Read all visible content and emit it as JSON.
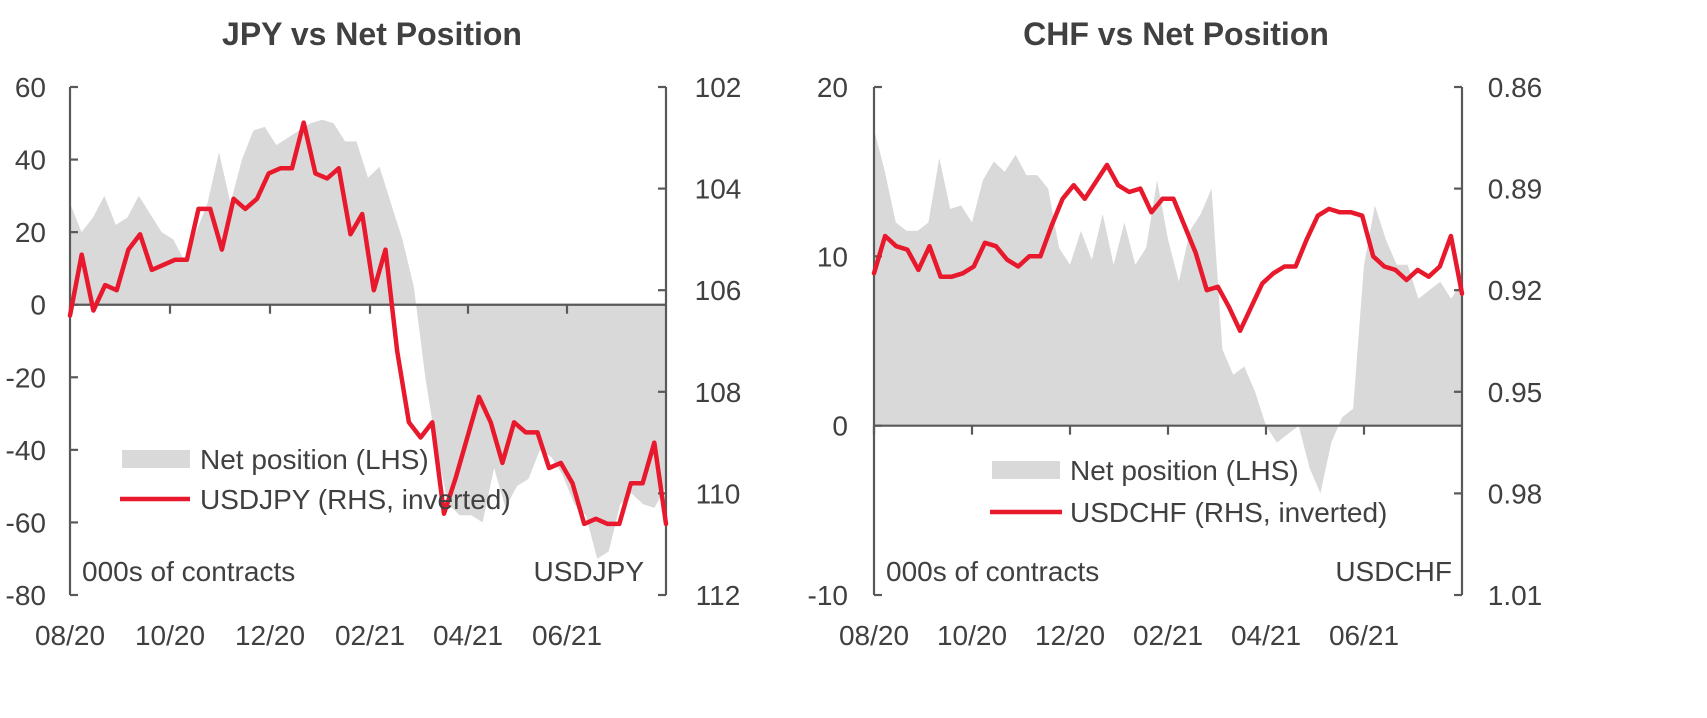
{
  "colors": {
    "area": "#d9d9d9",
    "line": "#e8192c",
    "axis": "#595959",
    "text": "#404040"
  },
  "chart_data": [
    {
      "type": "area",
      "title": "JPY vs Net Position",
      "left_axis_note": "000s of contracts",
      "right_axis_note": "USDJPY",
      "legend": [
        {
          "label": "Net position (LHS)",
          "kind": "area"
        },
        {
          "label": "USDJPY (RHS, inverted)",
          "kind": "line"
        }
      ],
      "x_tick_labels": [
        "08/20",
        "10/20",
        "12/20",
        "02/21",
        "04/21",
        "06/21"
      ],
      "y_left": {
        "min": -80,
        "max": 60,
        "ticks": [
          60,
          40,
          20,
          0,
          -20,
          -40,
          -60,
          -80
        ]
      },
      "y_right": {
        "min": 102,
        "max": 112,
        "inverted": true,
        "ticks": [
          102,
          104,
          106,
          108,
          110,
          112
        ]
      },
      "series": [
        {
          "name": "Net position (LHS)",
          "axis": "left",
          "values": [
            28,
            20,
            24,
            30,
            22,
            24,
            30,
            25,
            20,
            18,
            12,
            20,
            28,
            42,
            28,
            40,
            48,
            49,
            44,
            46,
            48,
            50,
            51,
            50,
            45,
            45,
            35,
            38,
            28,
            18,
            5,
            -20,
            -40,
            -55,
            -58,
            -58,
            -60,
            -45,
            -56,
            -50,
            -48,
            -40,
            -42,
            -47,
            -55,
            -58,
            -70,
            -68,
            -55,
            -52,
            -55,
            -56,
            -50
          ]
        },
        {
          "name": "USDJPY (RHS, inverted)",
          "axis": "right",
          "values": [
            106.5,
            105.3,
            106.4,
            105.9,
            106.0,
            105.2,
            104.9,
            105.6,
            105.5,
            105.4,
            105.4,
            104.4,
            104.4,
            105.2,
            104.2,
            104.4,
            104.2,
            103.7,
            103.6,
            103.6,
            102.7,
            103.7,
            103.8,
            103.6,
            104.9,
            104.5,
            106.0,
            105.2,
            107.2,
            108.6,
            108.9,
            108.6,
            110.4,
            109.7,
            108.9,
            108.1,
            108.6,
            109.4,
            108.6,
            108.8,
            108.8,
            109.5,
            109.4,
            109.8,
            110.6,
            110.5,
            110.6,
            110.6,
            109.8,
            109.8,
            109.0,
            110.6
          ]
        }
      ]
    },
    {
      "type": "area",
      "title": "CHF vs Net Position",
      "left_axis_note": "000s of contracts",
      "right_axis_note": "USDCHF",
      "legend": [
        {
          "label": "Net position (LHS)",
          "kind": "area"
        },
        {
          "label": "USDCHF (RHS, inverted)",
          "kind": "line"
        }
      ],
      "x_tick_labels": [
        "08/20",
        "10/20",
        "12/20",
        "02/21",
        "04/21",
        "06/21"
      ],
      "y_left": {
        "min": -10,
        "max": 20,
        "ticks": [
          20,
          10,
          0,
          -10
        ]
      },
      "y_right": {
        "min": 0.86,
        "max": 1.01,
        "inverted": true,
        "ticks": [
          0.86,
          0.89,
          0.92,
          0.95,
          0.98,
          1.01
        ]
      },
      "series": [
        {
          "name": "Net position (LHS)",
          "axis": "left",
          "values": [
            17.5,
            15,
            12,
            11.5,
            11.5,
            12,
            15.8,
            12.8,
            13,
            12,
            14.5,
            15.6,
            15,
            16,
            14.8,
            14.8,
            14,
            10.5,
            9.5,
            11.5,
            9.8,
            12.5,
            9.5,
            12,
            9.5,
            10.5,
            14.5,
            11,
            8.5,
            11.5,
            12.5,
            14,
            4.5,
            3,
            3.5,
            2,
            0,
            -1,
            -0.5,
            0,
            -2.5,
            -4,
            -1,
            0.5,
            1,
            9.5,
            13,
            11,
            9.5,
            9.5,
            7.5,
            8,
            8.5,
            7.5,
            8.5
          ]
        },
        {
          "name": "USDCHF (RHS, inverted)",
          "axis": "right",
          "values": [
            0.915,
            0.904,
            0.907,
            0.908,
            0.914,
            0.907,
            0.916,
            0.916,
            0.915,
            0.913,
            0.906,
            0.907,
            0.911,
            0.913,
            0.91,
            0.91,
            0.901,
            0.893,
            0.889,
            0.893,
            0.888,
            0.883,
            0.889,
            0.891,
            0.89,
            0.897,
            0.893,
            0.893,
            0.901,
            0.909,
            0.92,
            0.919,
            0.925,
            0.932,
            0.925,
            0.918,
            0.915,
            0.913,
            0.913,
            0.905,
            0.898,
            0.896,
            0.897,
            0.897,
            0.898,
            0.91,
            0.913,
            0.914,
            0.917,
            0.914,
            0.916,
            0.913,
            0.904,
            0.921
          ]
        }
      ]
    }
  ]
}
